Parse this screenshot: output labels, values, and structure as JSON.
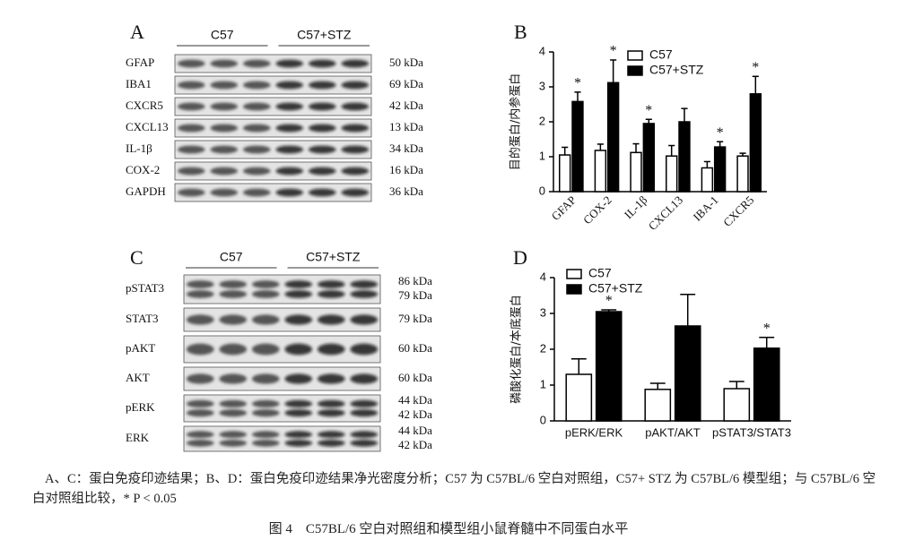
{
  "panel_a": {
    "label": "A",
    "groups": [
      "C57",
      "C57+STZ"
    ],
    "rows": [
      {
        "name": "GFAP",
        "kda": [
          "50 kDa"
        ]
      },
      {
        "name": "IBA1",
        "kda": [
          "69 kDa"
        ]
      },
      {
        "name": "CXCR5",
        "kda": [
          "42 kDa"
        ]
      },
      {
        "name": "CXCL13",
        "kda": [
          "13 kDa"
        ]
      },
      {
        "name": "IL-1β",
        "kda": [
          "34 kDa"
        ]
      },
      {
        "name": "COX-2",
        "kda": [
          "16 kDa"
        ]
      },
      {
        "name": "GAPDH",
        "kda": [
          "36 kDa"
        ]
      }
    ]
  },
  "panel_c": {
    "label": "C",
    "groups": [
      "C57",
      "C57+STZ"
    ],
    "rows": [
      {
        "name": "pSTAT3",
        "kda": [
          "86 kDa",
          "79 kDa"
        ]
      },
      {
        "name": "STAT3",
        "kda": [
          "79 kDa"
        ]
      },
      {
        "name": "pAKT",
        "kda": [
          "60 kDa"
        ]
      },
      {
        "name": "AKT",
        "kda": [
          "60 kDa"
        ]
      },
      {
        "name": "pERK",
        "kda": [
          "44 kDa",
          "42 kDa"
        ]
      },
      {
        "name": "ERK",
        "kda": [
          "44 kDa",
          "42 kDa"
        ]
      }
    ]
  },
  "chart_data": [
    {
      "type": "bar",
      "panel": "B",
      "ylabel": "目的蛋白/内参蛋白",
      "categories": [
        "GFAP",
        "COX-2",
        "IL-1β",
        "CXCL13",
        "IBA-1",
        "CXCR5"
      ],
      "series": [
        {
          "name": "C57",
          "color": "#ffffff",
          "values": [
            1.05,
            1.18,
            1.12,
            1.02,
            0.68,
            1.02
          ],
          "errors": [
            0.22,
            0.18,
            0.25,
            0.3,
            0.18,
            0.08
          ]
        },
        {
          "name": "C57+STZ",
          "color": "#000000",
          "values": [
            2.58,
            3.12,
            1.95,
            2.0,
            1.28,
            2.8
          ],
          "errors": [
            0.27,
            0.65,
            0.12,
            0.38,
            0.15,
            0.5
          ]
        }
      ],
      "significance": [
        "*",
        "*",
        "*",
        null,
        "*",
        "*"
      ],
      "ylim": [
        0,
        4
      ],
      "yticks": [
        0,
        1,
        2,
        3,
        4
      ],
      "legend": "upper-left",
      "rotate_labels": true
    },
    {
      "type": "bar",
      "panel": "D",
      "ylabel": "磷酸化蛋白/本底蛋白",
      "categories": [
        "pERK/ERK",
        "pAKT/AKT",
        "pSTAT3/STAT3"
      ],
      "series": [
        {
          "name": "C57",
          "color": "#ffffff",
          "values": [
            1.3,
            0.88,
            0.9
          ],
          "errors": [
            0.43,
            0.17,
            0.2
          ]
        },
        {
          "name": "C57+STZ",
          "color": "#000000",
          "values": [
            3.05,
            2.65,
            2.03
          ],
          "errors": [
            0.05,
            0.88,
            0.3
          ]
        }
      ],
      "significance": [
        "*",
        null,
        "*"
      ],
      "ylim": [
        0,
        4
      ],
      "yticks": [
        0,
        1,
        2,
        3,
        4
      ],
      "legend": "upper-left",
      "rotate_labels": false
    }
  ],
  "caption": {
    "note": "A、C：蛋白免疫印迹结果；B、D：蛋白免疫印迹结果净光密度分析；C57 为 C57BL/6 空白对照组，C57+ STZ 为 C57BL/6 模型组；与 C57BL/6 空白对照组比较，* P < 0.05",
    "title": "图 4　C57BL/6 空白对照组和模型组小鼠脊髓中不同蛋白水平"
  }
}
